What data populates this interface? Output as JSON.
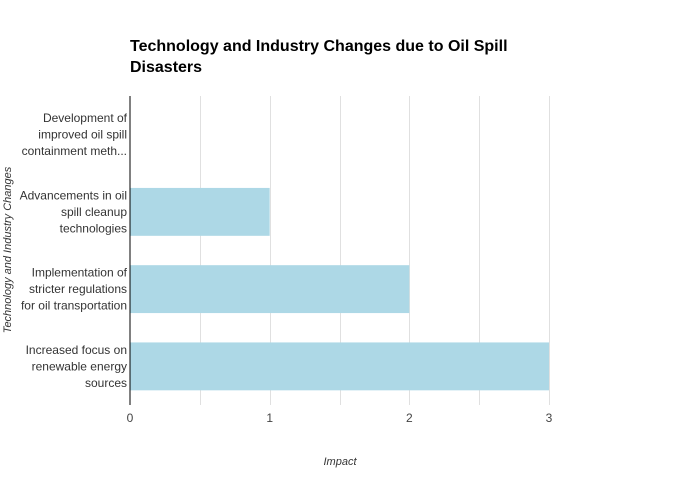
{
  "chart_data": {
    "type": "bar",
    "orientation": "horizontal",
    "title_lines": [
      "Technology and Industry Changes due to Oil Spill",
      "Disasters"
    ],
    "xlabel": "Impact",
    "ylabel": "Technology and Industry Changes",
    "xlim": [
      0,
      3
    ],
    "x_ticks": [
      "0",
      "1",
      "2",
      "3"
    ],
    "grid": true,
    "bar_color": "#add8e6",
    "categories": [
      [
        "Development of",
        "improved oil spill",
        "containment meth..."
      ],
      [
        "Advancements in oil",
        "spill cleanup",
        "technologies"
      ],
      [
        "Implementation of",
        "stricter regulations",
        "for oil transportation"
      ],
      [
        "Increased focus on",
        "renewable energy",
        "sources"
      ]
    ],
    "values": [
      0,
      1,
      2,
      3
    ]
  }
}
